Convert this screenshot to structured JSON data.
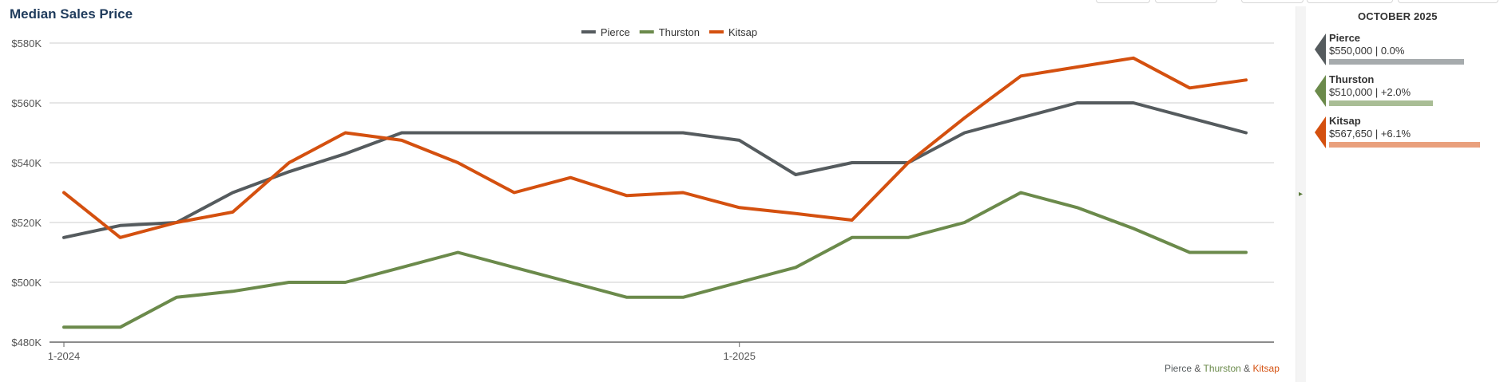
{
  "page": {
    "title": "Median Sales Price",
    "period": "OCTOBER 2025"
  },
  "colors": {
    "pierce": "#555b5e",
    "thurston": "#6b8a4b",
    "kitsap": "#d4500f",
    "grid": "#cccccc",
    "axis": "#666666",
    "title": "#1f3b5c"
  },
  "side_panel": {
    "items": [
      {
        "name": "Pierce",
        "value": "$550,000 | 0.0%",
        "color": "#555b5e",
        "bar_color": "#a6abad",
        "bar_fraction": 0.77
      },
      {
        "name": "Thurston",
        "value": "$510,000 | +2.0%",
        "color": "#6b8a4b",
        "bar_color": "#a9bd95",
        "bar_fraction": 0.59
      },
      {
        "name": "Kitsap",
        "value": "$567,650 | +6.1%",
        "color": "#d4500f",
        "bar_color": "#e9a07d",
        "bar_fraction": 0.86
      }
    ]
  },
  "credit": {
    "parts": [
      "Pierce",
      " & ",
      "Thurston",
      " & ",
      "Kitsap"
    ]
  },
  "chart_data": {
    "type": "line",
    "title": "Median Sales Price",
    "x": [
      "1-2024",
      "2-2024",
      "3-2024",
      "4-2024",
      "5-2024",
      "6-2024",
      "7-2024",
      "8-2024",
      "9-2024",
      "10-2024",
      "11-2024",
      "12-2024",
      "1-2025",
      "2-2025",
      "3-2025",
      "4-2025",
      "5-2025",
      "6-2025",
      "7-2025",
      "8-2025",
      "9-2025",
      "10-2025"
    ],
    "x_tick_labels": [
      "1-2024",
      "1-2025"
    ],
    "ylim": [
      480000,
      580000
    ],
    "y_ticks": [
      480000,
      500000,
      520000,
      540000,
      560000,
      580000
    ],
    "y_tick_labels": [
      "$480K",
      "$500K",
      "$520K",
      "$540K",
      "$560K",
      "$580K"
    ],
    "grid": true,
    "legend_position": "top-center",
    "series": [
      {
        "name": "Pierce",
        "color": "#555b5e",
        "values": [
          515000,
          519000,
          520000,
          530000,
          537000,
          543000,
          550000,
          550000,
          550000,
          550000,
          550000,
          550000,
          547500,
          536000,
          540000,
          540000,
          550000,
          555000,
          560000,
          560000,
          555000,
          550000
        ]
      },
      {
        "name": "Thurston",
        "color": "#6b8a4b",
        "values": [
          485000,
          485000,
          495000,
          497000,
          500000,
          500000,
          505000,
          510000,
          505000,
          500000,
          495000,
          495000,
          500000,
          505000,
          515000,
          515000,
          520000,
          530000,
          525000,
          518000,
          510000,
          510000
        ]
      },
      {
        "name": "Kitsap",
        "color": "#d4500f",
        "values": [
          530000,
          515000,
          520000,
          523500,
          540000,
          550000,
          547500,
          540000,
          530000,
          535000,
          529000,
          530000,
          525000,
          523000,
          520800,
          540000,
          555000,
          569000,
          572000,
          575000,
          565000,
          567650
        ]
      }
    ]
  }
}
